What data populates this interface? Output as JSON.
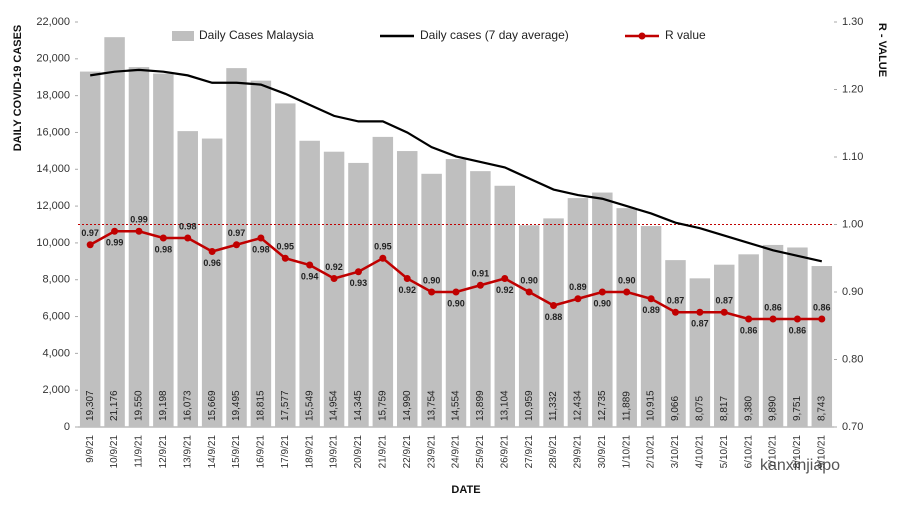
{
  "chart_data": {
    "type": "bar",
    "x_label": "DATE",
    "y_label": "DAILY COVID-19 CASES",
    "y2_label": "R - VALUE",
    "watermark": "kanxinjiapo",
    "categories": [
      "9/9/21",
      "10/9/21",
      "11/9/21",
      "12/9/21",
      "13/9/21",
      "14/9/21",
      "15/9/21",
      "16/9/21",
      "17/9/21",
      "18/9/21",
      "19/9/21",
      "20/9/21",
      "21/9/21",
      "22/9/21",
      "23/9/21",
      "24/9/21",
      "25/9/21",
      "26/9/21",
      "27/9/21",
      "28/9/21",
      "29/9/21",
      "30/9/21",
      "1/10/21",
      "2/10/21",
      "3/10/21",
      "4/10/21",
      "5/10/21",
      "6/10/21",
      "7/10/21",
      "8/10/21",
      "9/10/21"
    ],
    "ylim": [
      0,
      22000
    ],
    "yticks": [
      0,
      {
        "value": 2000,
        "label": "2,000"
      },
      {
        "value": 4000,
        "label": "4,000"
      },
      {
        "value": 6000,
        "label": "6,000"
      },
      {
        "value": 8000,
        "label": "8,000"
      },
      {
        "value": 10000,
        "label": "10,000"
      },
      {
        "value": 12000,
        "label": "12,000"
      },
      {
        "value": 14000,
        "label": "14,000"
      },
      {
        "value": 16000,
        "label": "16,000"
      },
      {
        "value": 18000,
        "label": "18,000"
      },
      {
        "value": 20000,
        "label": "20,000"
      },
      {
        "value": 22000,
        "label": "22,000"
      }
    ],
    "y2lim": [
      0.7,
      1.3
    ],
    "y2ticks": [
      {
        "value": 0.7,
        "label": "0.70"
      },
      {
        "value": 0.8,
        "label": "0.80"
      },
      {
        "value": 0.9,
        "label": "0.90"
      },
      {
        "value": 1.0,
        "label": "1.00"
      },
      {
        "value": 1.1,
        "label": "1.10"
      },
      {
        "value": 1.2,
        "label": "1.20"
      },
      {
        "value": 1.3,
        "label": "1.30"
      }
    ],
    "reference_line": {
      "value": 1.0,
      "axis": "y2",
      "color": "#c00000"
    },
    "series": [
      {
        "name": "Daily Cases Malaysia",
        "type": "bar",
        "color": "#bfbfbf",
        "values": [
          19307,
          21176,
          19550,
          19198,
          16073,
          15669,
          19495,
          18815,
          17577,
          15549,
          14954,
          14345,
          15759,
          14990,
          13754,
          14554,
          13899,
          13104,
          10959,
          11332,
          12434,
          12735,
          11889,
          10915,
          9066,
          8075,
          8817,
          9380,
          9890,
          9751,
          8743
        ],
        "value_labels": [
          "19,307",
          "21,176",
          "19,550",
          "19,198",
          "16,073",
          "15,669",
          "19,495",
          "18,815",
          "17,577",
          "15,549",
          "14,954",
          "14,345",
          "15,759",
          "14,990",
          "13,754",
          "14,554",
          "13,899",
          "13,104",
          "10,959",
          "11,332",
          "12,434",
          "12,735",
          "11,889",
          "10,915",
          "9,066",
          "8,075",
          "8,817",
          "9,380",
          "9,890",
          "9,751",
          "8,743"
        ]
      },
      {
        "name": "Daily cases (7 day average)",
        "type": "line",
        "color": "#000000",
        "values": [
          19100,
          19300,
          19400,
          19300,
          19100,
          18700,
          18700,
          18600,
          18100,
          17500,
          16900,
          16600,
          16600,
          16000,
          15200,
          14700,
          14400,
          14100,
          13500,
          12900,
          12600,
          12400,
          12000,
          11600,
          11100,
          10800,
          10400,
          10000,
          9600,
          9300,
          9000
        ]
      },
      {
        "name": "R value",
        "type": "line",
        "axis": "y2",
        "color": "#c00000",
        "markers": true,
        "values": [
          0.97,
          0.99,
          0.99,
          0.98,
          0.98,
          0.96,
          0.97,
          0.98,
          0.95,
          0.94,
          0.92,
          0.93,
          0.95,
          0.92,
          0.9,
          0.9,
          0.91,
          0.92,
          0.9,
          0.88,
          0.89,
          0.9,
          0.9,
          0.89,
          0.87,
          0.87,
          0.87,
          0.86,
          0.86,
          0.86,
          0.86
        ],
        "value_labels": [
          "0.97",
          "0.99",
          "0.99",
          "0.98",
          "0.98",
          "0.96",
          "0.97",
          "0.98",
          "0.95",
          "0.94",
          "0.92",
          "0.93",
          "0.95",
          "0.92",
          "0.90",
          "0.90",
          "0.91",
          "0.92",
          "0.90",
          "0.88",
          "0.89",
          "0.90",
          "0.90",
          "0.89",
          "0.87",
          "0.87",
          "0.87",
          "0.86",
          "0.86",
          "0.86",
          "0.86"
        ]
      }
    ]
  }
}
